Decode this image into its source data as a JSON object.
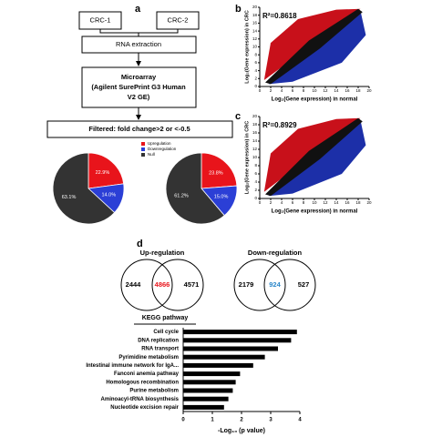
{
  "panel_labels": [
    "a",
    "b",
    "c",
    "d"
  ],
  "flowchart": {
    "nodes": [
      {
        "lines": [
          "CRC-1"
        ]
      },
      {
        "lines": [
          "CRC-2"
        ]
      },
      {
        "lines": [
          "RNA extraction"
        ]
      },
      {
        "lines": [
          "Microarray",
          "(Agilent SurePrint G3 Human",
          "V2 GE)"
        ]
      },
      {
        "lines": [
          "Filtered:  fold change>2 or <-0.5"
        ]
      }
    ]
  },
  "chart_data": [
    {
      "type": "pie",
      "categories": [
        "Upregulation",
        "Downregulation",
        "Null"
      ],
      "colors": [
        "#e8141b",
        "#2b3fd6",
        "#333333"
      ],
      "values": [
        22.9,
        14.0,
        63.1
      ],
      "value_labels": [
        "22.9%",
        "14.0%",
        "63.1%"
      ]
    },
    {
      "type": "pie",
      "colors": [
        "#e8141b",
        "#2b3fd6",
        "#333333"
      ],
      "values": [
        23.8,
        15.0,
        61.2
      ],
      "value_labels": [
        "23.8%",
        "15.0%",
        "61.2%"
      ]
    },
    {
      "type": "scatter",
      "annotation": "R²=0.8618",
      "xlabel": "Log₂(Gene expression) in normal",
      "ylabel": "Log₂(Gene expression) in CRC",
      "xlim": [
        0,
        20
      ],
      "ylim": [
        0,
        20
      ],
      "xticks": [
        0,
        2,
        4,
        6,
        8,
        10,
        12,
        14,
        16,
        18,
        20
      ],
      "yticks": [
        0,
        2,
        4,
        6,
        8,
        10,
        12,
        14,
        16,
        18,
        20
      ]
    },
    {
      "type": "scatter",
      "annotation": "R²=0.8929",
      "xlabel": "Log₂(Gene expression) in normal",
      "ylabel": "Log₂(Gene expression) in CRC",
      "xlim": [
        0,
        20
      ],
      "ylim": [
        0,
        20
      ],
      "xticks": [
        0,
        2,
        4,
        6,
        8,
        10,
        12,
        14,
        16,
        18,
        20
      ],
      "yticks": [
        0,
        2,
        4,
        6,
        8,
        10,
        12,
        14,
        16,
        18,
        20
      ]
    },
    {
      "type": "venn",
      "title": "Up-regulation",
      "values": [
        2444,
        4866,
        4571
      ],
      "highlight_color": "#e8141b"
    },
    {
      "type": "venn",
      "title": "Down-regulation",
      "values": [
        2179,
        924,
        527
      ],
      "highlight_color": "#2a86c9"
    },
    {
      "type": "hbar",
      "title": "KEGG pathway",
      "xlabel": "-Log₁₀ (p value)",
      "color": "#000000",
      "categories": [
        "Cell cycle",
        "DNA replication",
        "RNA transport",
        "Pyrimidine metabolism",
        "Intestinal immune network for IgA...",
        "Fanconi anemia pathway",
        "Homologous recombination",
        "Purine metabolism",
        "Aminoacyl-tRNA biosynthesis",
        "Nucleotide excision repair"
      ],
      "values": [
        3.9,
        3.7,
        3.25,
        2.8,
        2.4,
        1.95,
        1.8,
        1.7,
        1.55,
        1.4
      ],
      "xlim": [
        0,
        4
      ],
      "xticks": [
        0,
        1,
        2,
        3,
        4
      ]
    }
  ]
}
